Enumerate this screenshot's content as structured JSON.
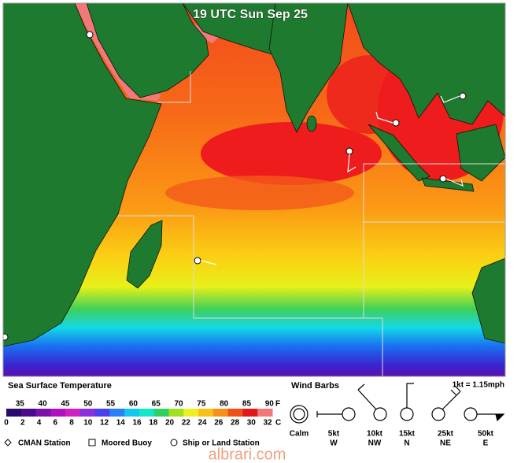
{
  "map": {
    "title": "19 UTC Sun Sep 25"
  },
  "legend": {
    "title": "Sea Surface Temperature",
    "fahrenheit_unit": "F",
    "celsius_unit": "C",
    "fahrenheit": [
      35,
      40,
      45,
      50,
      55,
      60,
      65,
      70,
      75,
      80,
      85,
      90
    ],
    "celsius": [
      0,
      2,
      4,
      6,
      8,
      10,
      12,
      14,
      16,
      18,
      20,
      22,
      24,
      26,
      28,
      30,
      32
    ]
  },
  "wind_barbs": {
    "title": "Wind Barbs",
    "conversion": "1kt = 1.15mph",
    "items": [
      {
        "speed": "Calm"
      },
      {
        "speed": "5kt",
        "direction": "W"
      },
      {
        "speed": "10kt",
        "direction": "NW"
      },
      {
        "speed": "15kt",
        "direction": "N"
      },
      {
        "speed": "25kt",
        "direction": "NE"
      },
      {
        "speed": "50kt",
        "direction": "E"
      }
    ]
  },
  "stations": [
    "CMAN Station",
    "Moored Buoy",
    "Ship or Land Station"
  ],
  "watermark": "albrari.com"
}
